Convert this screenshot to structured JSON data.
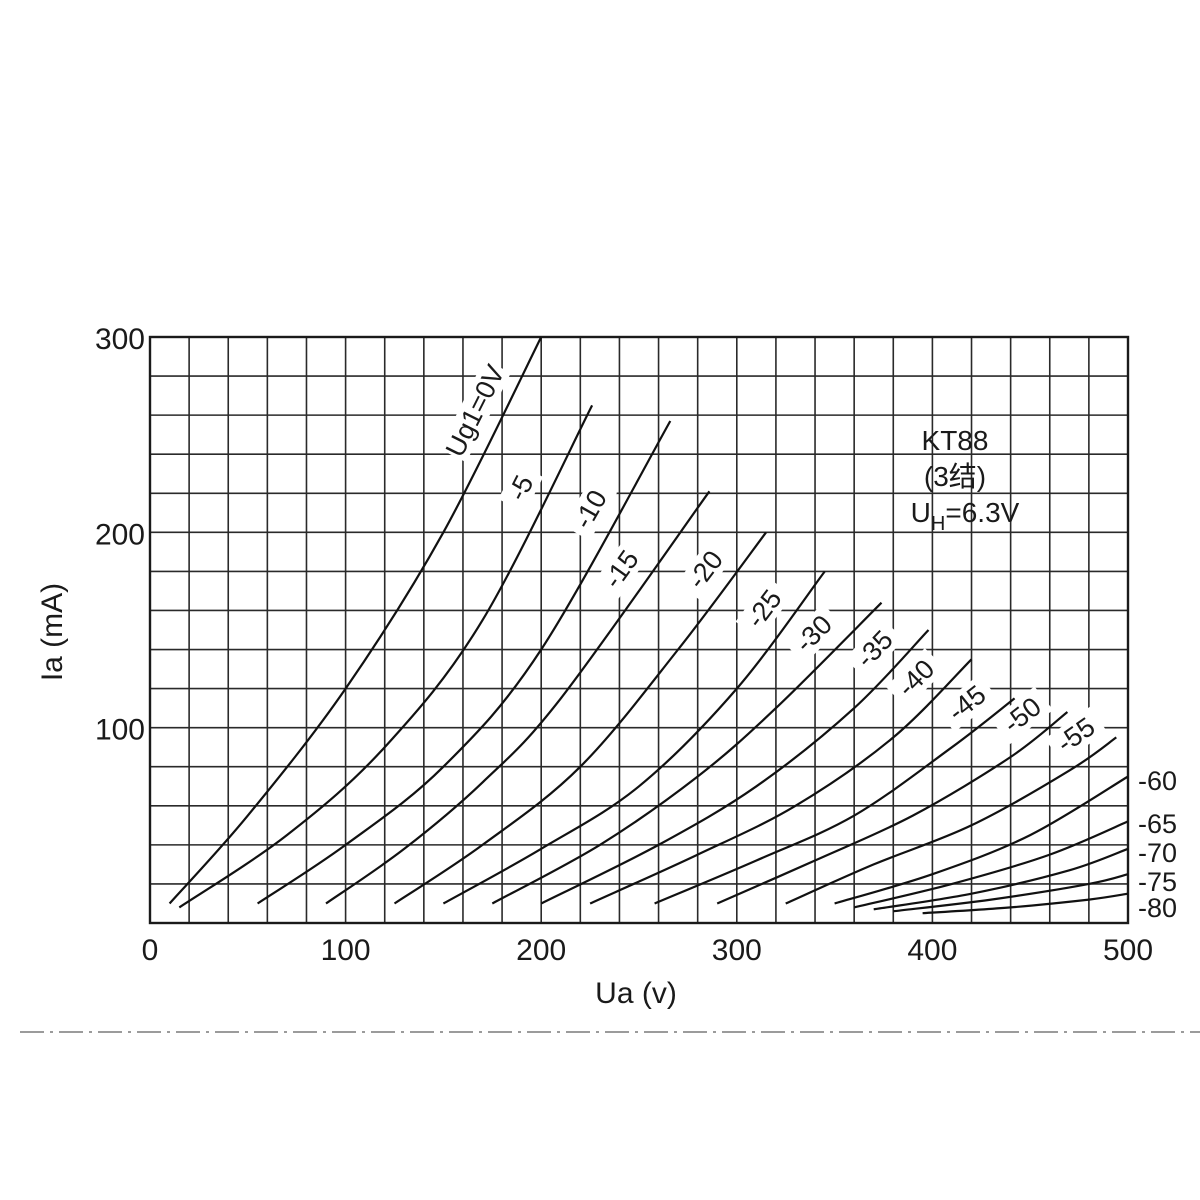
{
  "chart_data": {
    "type": "line",
    "title": "",
    "xlabel": "Ua (v)",
    "ylabel": "Ia  (mA)",
    "xlim": [
      0,
      500
    ],
    "ylim": [
      0,
      300
    ],
    "x_ticks": [
      0,
      100,
      200,
      300,
      400,
      500
    ],
    "x_tick_labels": [
      "0",
      "100",
      "200",
      "300",
      "400",
      "500"
    ],
    "y_ticks": [
      100,
      200,
      300
    ],
    "y_tick_labels": [
      "100",
      "200",
      "300"
    ],
    "grid": true,
    "grid_x_step": 20,
    "grid_y_step": 20,
    "annotation": {
      "lines": [
        "KT88",
        "(3结)"
      ],
      "uh_prefix": "U",
      "uh_sub": "H",
      "uh_rest": "=6.3V"
    },
    "series": [
      {
        "name": "Ug1=0V",
        "label": "Ug1=0V",
        "x": [
          10,
          50,
          100,
          150,
          200
        ],
        "y": [
          10,
          55,
          120,
          200,
          300
        ]
      },
      {
        "name": "-5",
        "label": "-5",
        "x": [
          15,
          70,
          120,
          170,
          226
        ],
        "y": [
          8,
          45,
          90,
          155,
          265
        ]
      },
      {
        "name": "-10",
        "label": "-10",
        "x": [
          55,
          100,
          150,
          200,
          266
        ],
        "y": [
          10,
          40,
          80,
          140,
          257
        ]
      },
      {
        "name": "-15",
        "label": "-15",
        "x": [
          90,
          130,
          170,
          210,
          286
        ],
        "y": [
          10,
          38,
          72,
          115,
          221
        ]
      },
      {
        "name": "-20",
        "label": "-20",
        "x": [
          125,
          170,
          220,
          270,
          315
        ],
        "y": [
          10,
          40,
          80,
          140,
          200
        ]
      },
      {
        "name": "-25",
        "label": "-25",
        "x": [
          150,
          200,
          250,
          300,
          345
        ],
        "y": [
          10,
          38,
          70,
          120,
          180
        ]
      },
      {
        "name": "-30",
        "label": "-30",
        "x": [
          175,
          230,
          280,
          320,
          374
        ],
        "y": [
          10,
          40,
          75,
          110,
          164
        ]
      },
      {
        "name": "-35",
        "label": "-35",
        "x": [
          200,
          260,
          310,
          360,
          398
        ],
        "y": [
          10,
          40,
          70,
          110,
          150
        ]
      },
      {
        "name": "-40",
        "label": "-40",
        "x": [
          225,
          280,
          330,
          380,
          420
        ],
        "y": [
          10,
          35,
          60,
          95,
          135
        ]
      },
      {
        "name": "-45",
        "label": "-45",
        "x": [
          258,
          310,
          360,
          410,
          442
        ],
        "y": [
          10,
          32,
          55,
          90,
          115
        ]
      },
      {
        "name": "-50",
        "label": "-50",
        "x": [
          290,
          340,
          390,
          440,
          469
        ],
        "y": [
          10,
          32,
          55,
          85,
          108
        ]
      },
      {
        "name": "-55",
        "label": "-55",
        "x": [
          325,
          370,
          420,
          470,
          494
        ],
        "y": [
          10,
          30,
          50,
          78,
          95
        ]
      },
      {
        "name": "-60",
        "label": "-60",
        "x": [
          350,
          400,
          450,
          500
        ],
        "y": [
          10,
          25,
          45,
          75
        ]
      },
      {
        "name": "-65",
        "label": "-65",
        "x": [
          360,
          410,
          460,
          500
        ],
        "y": [
          8,
          20,
          35,
          52
        ]
      },
      {
        "name": "-70",
        "label": "-70",
        "x": [
          370,
          420,
          470,
          500
        ],
        "y": [
          7,
          15,
          27,
          38
        ]
      },
      {
        "name": "-75",
        "label": "-75",
        "x": [
          380,
          430,
          480,
          500
        ],
        "y": [
          6,
          12,
          20,
          25
        ]
      },
      {
        "name": "-80",
        "label": "-80",
        "x": [
          395,
          440,
          480,
          500
        ],
        "y": [
          5,
          8,
          12,
          15
        ]
      }
    ]
  }
}
